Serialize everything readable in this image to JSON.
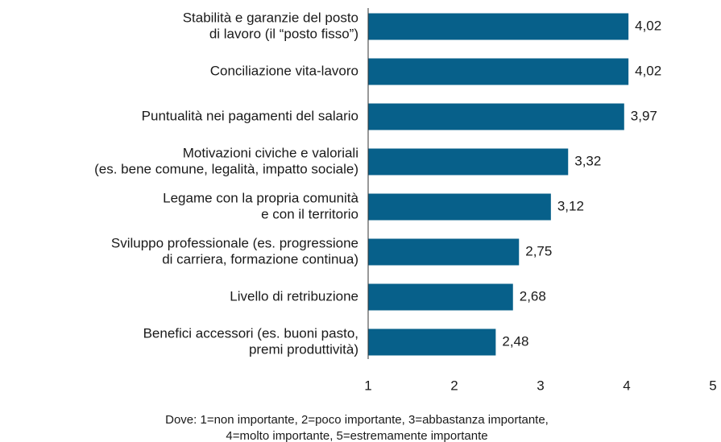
{
  "chart_data": {
    "type": "barh",
    "categories": [
      [
        "Stabilità e garanzie del posto",
        "di lavoro (il “posto fisso”)"
      ],
      [
        "Conciliazione vita-lavoro"
      ],
      [
        "Puntualità nei pagamenti del salario"
      ],
      [
        "Motivazioni civiche e valoriali",
        "(es. bene comune, legalità, impatto sociale)"
      ],
      [
        "Legame con la propria comunità",
        "e con il territorio"
      ],
      [
        "Sviluppo professionale (es. progressione",
        "di carriera, formazione continua)"
      ],
      [
        "Livello di retribuzione"
      ],
      [
        "Benefici accessori (es. buoni pasto,",
        "premi produttività)"
      ]
    ],
    "values": [
      4.02,
      4.02,
      3.97,
      3.32,
      3.12,
      2.75,
      2.68,
      2.48
    ],
    "value_labels": [
      "4,02",
      "4,02",
      "3,97",
      "3,32",
      "3,12",
      "2,75",
      "2,68",
      "2,48"
    ],
    "color": "#07608a",
    "xlim": [
      1,
      5
    ],
    "xticks": [
      1,
      2,
      3,
      4,
      5
    ],
    "note": [
      "Dove: 1=non importante, 2=poco importante, 3=abbastanza importante,",
      "4=molto importante, 5=estremamente importante"
    ]
  }
}
